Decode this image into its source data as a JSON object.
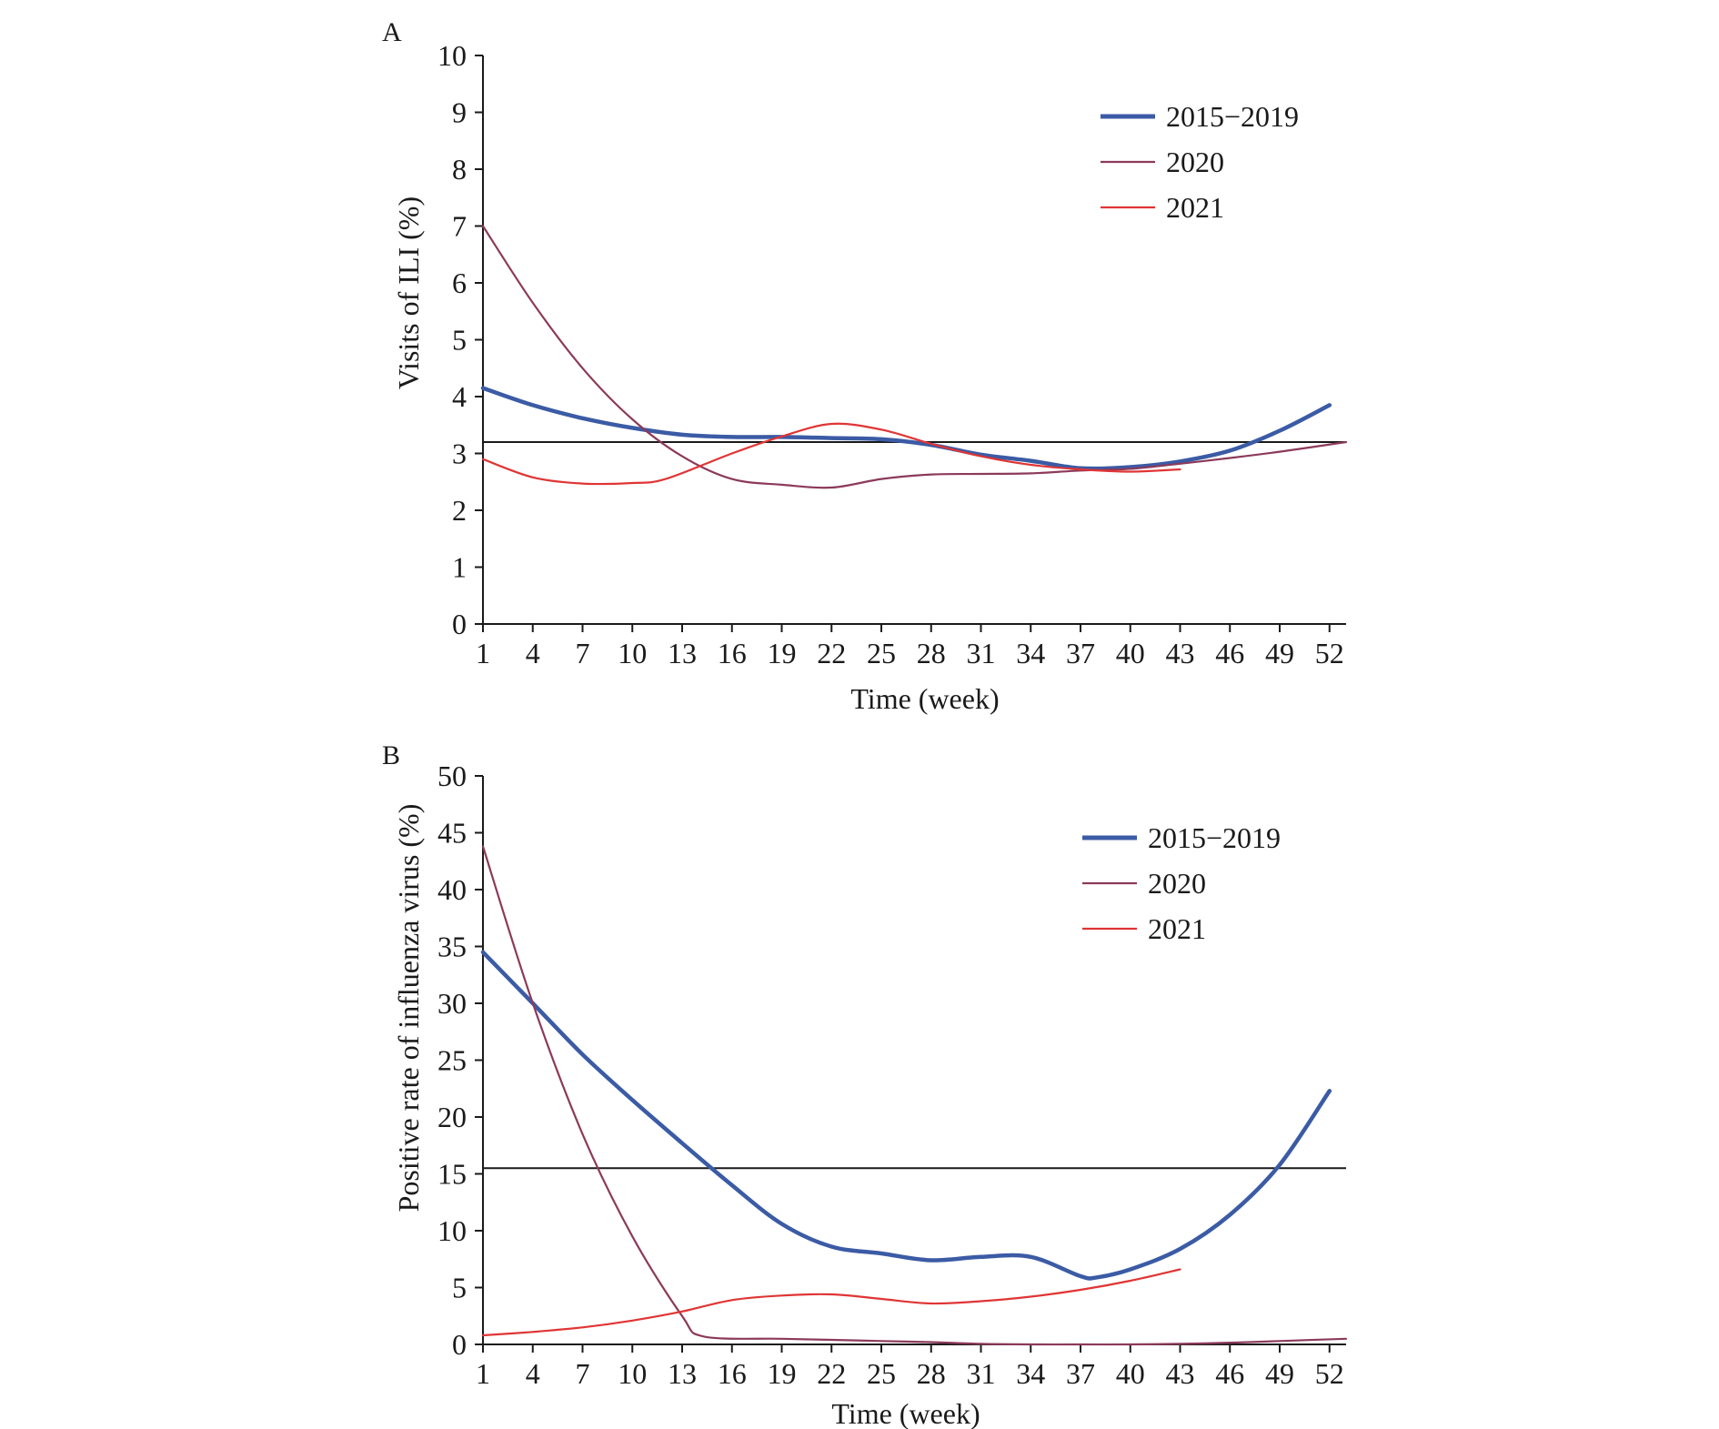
{
  "chart_data": [
    {
      "panel_label": "A",
      "type": "line",
      "xlabel": "Time (week)",
      "ylabel": "Visits of ILI (%)",
      "xlim": [
        1,
        53
      ],
      "ylim": [
        0,
        10
      ],
      "xticks": [
        "1",
        "4",
        "7",
        "10",
        "13",
        "16",
        "19",
        "22",
        "25",
        "28",
        "31",
        "34",
        "37",
        "40",
        "43",
        "46",
        "49",
        "52"
      ],
      "yticks": [
        "0",
        "1",
        "2",
        "3",
        "4",
        "5",
        "6",
        "7",
        "8",
        "9",
        "10"
      ],
      "threshold": 3.2,
      "legend_position": "top-right",
      "series": [
        {
          "name": "2015−2019",
          "color": "#3b5ba5",
          "thick": true,
          "points": [
            [
              1,
              4.15
            ],
            [
              4,
              3.85
            ],
            [
              7,
              3.62
            ],
            [
              10,
              3.45
            ],
            [
              13,
              3.33
            ],
            [
              16,
              3.29
            ],
            [
              19,
              3.29
            ],
            [
              22,
              3.27
            ],
            [
              25,
              3.25
            ],
            [
              28,
              3.15
            ],
            [
              31,
              2.98
            ],
            [
              34,
              2.87
            ],
            [
              37,
              2.74
            ],
            [
              40,
              2.76
            ],
            [
              43,
              2.86
            ],
            [
              46,
              3.05
            ],
            [
              49,
              3.4
            ],
            [
              52,
              3.85
            ]
          ]
        },
        {
          "name": "2020",
          "color": "#8c3a5a",
          "thick": false,
          "points": [
            [
              1,
              7.0
            ],
            [
              4,
              5.65
            ],
            [
              7,
              4.5
            ],
            [
              10,
              3.6
            ],
            [
              13,
              2.95
            ],
            [
              16,
              2.55
            ],
            [
              19,
              2.45
            ],
            [
              22,
              2.4
            ],
            [
              25,
              2.55
            ],
            [
              28,
              2.63
            ],
            [
              31,
              2.64
            ],
            [
              34,
              2.65
            ],
            [
              37,
              2.7
            ],
            [
              40,
              2.73
            ],
            [
              43,
              2.82
            ],
            [
              46,
              2.92
            ],
            [
              49,
              3.03
            ],
            [
              53,
              3.2
            ]
          ]
        },
        {
          "name": "2021",
          "color": "#e03535",
          "thick": false,
          "points": [
            [
              1,
              2.9
            ],
            [
              4,
              2.58
            ],
            [
              7,
              2.47
            ],
            [
              10,
              2.48
            ],
            [
              12,
              2.55
            ],
            [
              16,
              3.0
            ],
            [
              19,
              3.3
            ],
            [
              22,
              3.52
            ],
            [
              25,
              3.42
            ],
            [
              28,
              3.17
            ],
            [
              31,
              2.95
            ],
            [
              34,
              2.8
            ],
            [
              37,
              2.72
            ],
            [
              40,
              2.68
            ],
            [
              43,
              2.72
            ]
          ]
        }
      ]
    },
    {
      "panel_label": "B",
      "type": "line",
      "xlabel": "Time (week)",
      "ylabel": "Positive rate of influenza virus (%)",
      "xlim": [
        1,
        53
      ],
      "ylim": [
        0,
        50
      ],
      "xticks": [
        "1",
        "4",
        "7",
        "10",
        "13",
        "16",
        "19",
        "22",
        "25",
        "28",
        "31",
        "34",
        "37",
        "40",
        "43",
        "46",
        "49",
        "52"
      ],
      "yticks": [
        "0",
        "5",
        "10",
        "15",
        "20",
        "25",
        "30",
        "35",
        "40",
        "45",
        "50"
      ],
      "threshold": 15.5,
      "legend_position": "top-right",
      "series": [
        {
          "name": "2015−2019",
          "color": "#3b5ba5",
          "thick": true,
          "points": [
            [
              1,
              34.5
            ],
            [
              4,
              30.0
            ],
            [
              7,
              25.5
            ],
            [
              10,
              21.5
            ],
            [
              13,
              17.7
            ],
            [
              16,
              14.0
            ],
            [
              19,
              10.6
            ],
            [
              22,
              8.6
            ],
            [
              25,
              8.0
            ],
            [
              28,
              7.4
            ],
            [
              31,
              7.7
            ],
            [
              34,
              7.7
            ],
            [
              37,
              6.0
            ],
            [
              38,
              5.9
            ],
            [
              40,
              6.6
            ],
            [
              43,
              8.4
            ],
            [
              46,
              11.4
            ],
            [
              49,
              15.8
            ],
            [
              52,
              22.3
            ]
          ]
        },
        {
          "name": "2020",
          "color": "#8c3a5a",
          "thick": false,
          "points": [
            [
              1,
              43.8
            ],
            [
              4,
              30.0
            ],
            [
              7,
              18.5
            ],
            [
              10,
              9.5
            ],
            [
              13,
              2.5
            ],
            [
              14.3,
              0.7
            ],
            [
              19,
              0.5
            ],
            [
              22,
              0.4
            ],
            [
              25,
              0.3
            ],
            [
              28,
              0.2
            ],
            [
              31,
              0.05
            ],
            [
              34,
              0.0
            ],
            [
              37,
              0.0
            ],
            [
              40,
              0.0
            ],
            [
              43,
              0.05
            ],
            [
              46,
              0.15
            ],
            [
              49,
              0.3
            ],
            [
              53,
              0.5
            ]
          ]
        },
        {
          "name": "2021",
          "color": "#e03535",
          "thick": false,
          "points": [
            [
              1,
              0.8
            ],
            [
              4,
              1.1
            ],
            [
              7,
              1.5
            ],
            [
              10,
              2.1
            ],
            [
              13,
              2.9
            ],
            [
              16,
              3.9
            ],
            [
              19,
              4.3
            ],
            [
              22,
              4.4
            ],
            [
              25,
              4.0
            ],
            [
              28,
              3.6
            ],
            [
              31,
              3.8
            ],
            [
              34,
              4.2
            ],
            [
              37,
              4.8
            ],
            [
              40,
              5.6
            ],
            [
              43,
              6.6
            ]
          ]
        }
      ]
    }
  ]
}
